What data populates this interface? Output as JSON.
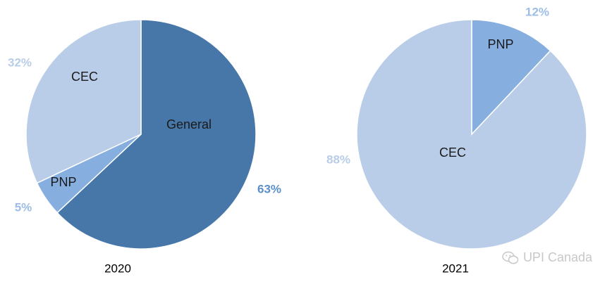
{
  "chart_data": [
    {
      "type": "pie",
      "title": "2020",
      "slices": [
        {
          "label": "General",
          "percent": "63%",
          "value": 63,
          "color": "#4677a8",
          "label_color": "#1a1a1a",
          "pct_color": "#5b8fc7"
        },
        {
          "label": "PNP",
          "percent": "5%",
          "value": 5,
          "color": "#86aedf",
          "label_color": "#1a1a1a",
          "pct_color": "#9dbde6"
        },
        {
          "label": "CEC",
          "percent": "32%",
          "value": 32,
          "color": "#b9cde8",
          "label_color": "#1a1a1a",
          "pct_color": "#b9cde8"
        }
      ]
    },
    {
      "type": "pie",
      "title": "2021",
      "slices": [
        {
          "label": "PNP",
          "percent": "12%",
          "value": 12,
          "color": "#86aedf",
          "label_color": "#1a1a1a",
          "pct_color": "#9dbde6"
        },
        {
          "label": "CEC",
          "percent": "88%",
          "value": 88,
          "color": "#b9cde8",
          "label_color": "#1a1a1a",
          "pct_color": "#b9cde8"
        }
      ]
    }
  ],
  "watermark": {
    "text": "UPI Canada",
    "icon": "wechat-icon"
  }
}
